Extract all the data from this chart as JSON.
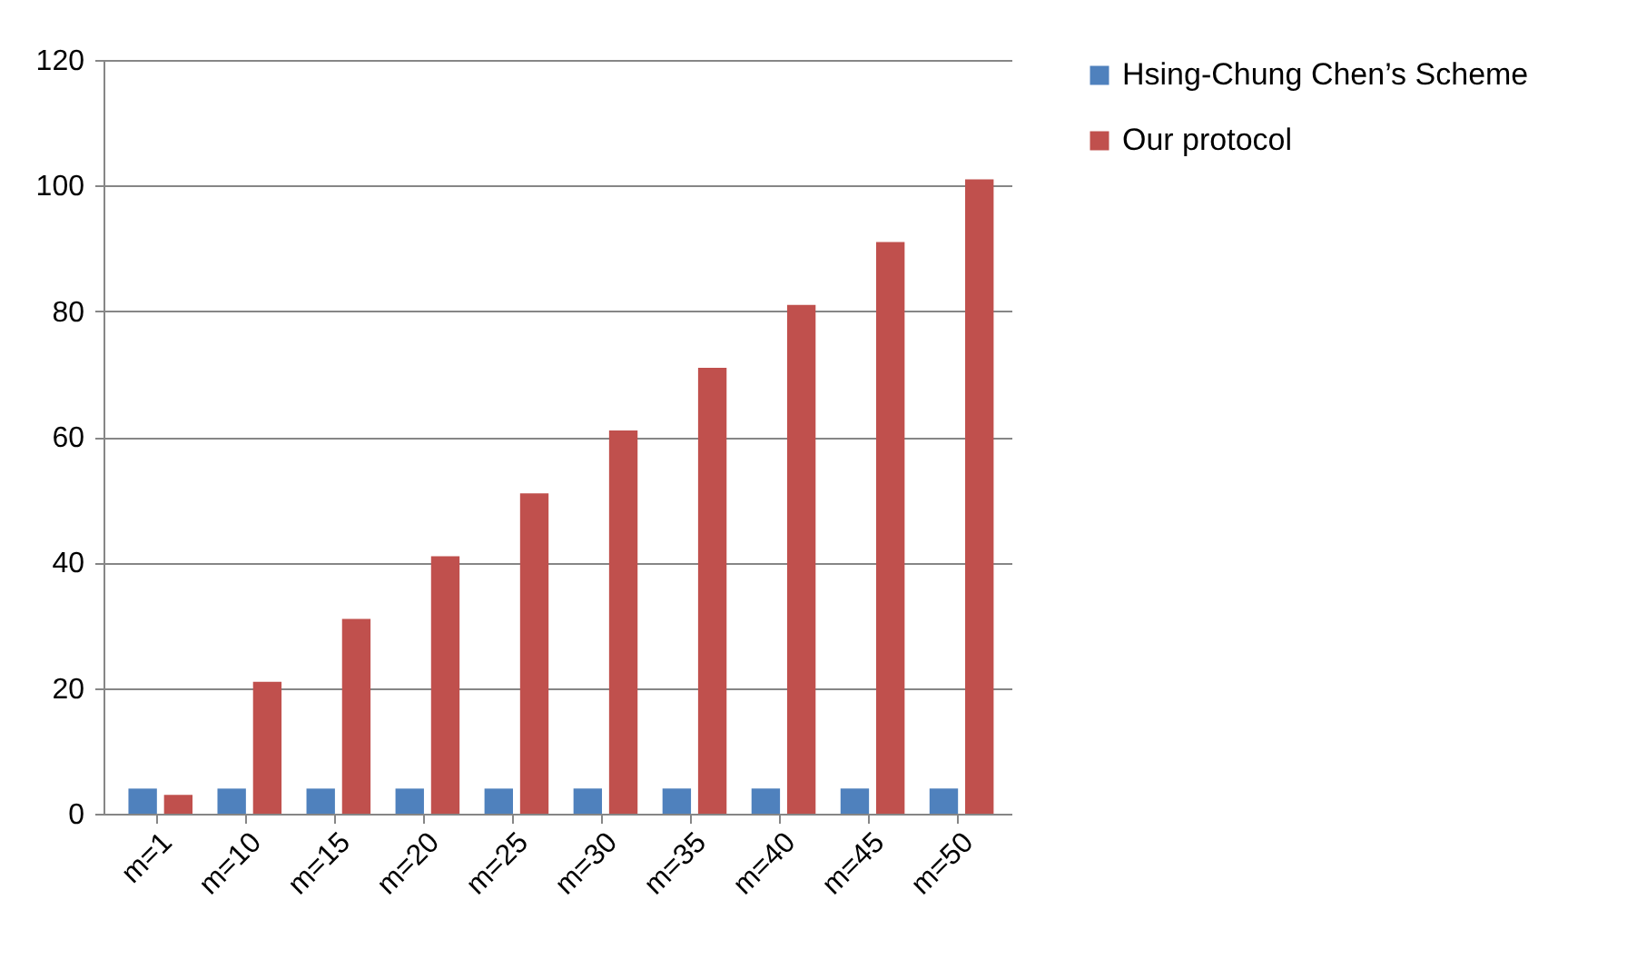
{
  "chart_data": {
    "type": "bar",
    "categories": [
      "m=1",
      "m=10",
      "m=15",
      "m=20",
      "m=25",
      "m=30",
      "m=35",
      "m=40",
      "m=45",
      "m=50"
    ],
    "series": [
      {
        "name": "Hsing-Chung Chen’s Scheme",
        "color": "#4f81bd",
        "values": [
          4,
          4,
          4,
          4,
          4,
          4,
          4,
          4,
          4,
          4
        ]
      },
      {
        "name": "Our protocol",
        "color": "#c0504d",
        "values": [
          3,
          21,
          31,
          41,
          51,
          61,
          71,
          81,
          91,
          101
        ]
      }
    ],
    "ylim": [
      0,
      120
    ],
    "yticks": [
      0,
      20,
      40,
      60,
      80,
      100,
      120
    ],
    "grid": "y",
    "legend": "right"
  }
}
